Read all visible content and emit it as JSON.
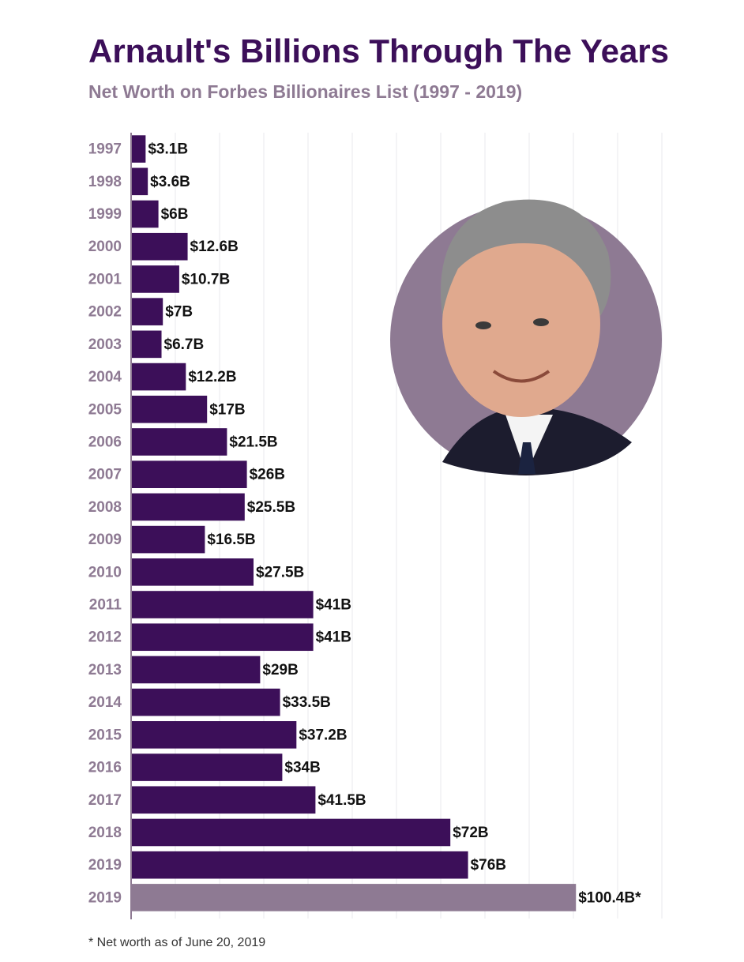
{
  "chart_data": {
    "type": "bar",
    "orientation": "horizontal",
    "title": "Arnault's Billions Through The Years",
    "subtitle": "Net Worth on Forbes Billionaires List (1997 - 2019)",
    "categories": [
      "1997",
      "1998",
      "1999",
      "2000",
      "2001",
      "2002",
      "2003",
      "2004",
      "2005",
      "2006",
      "2007",
      "2008",
      "2009",
      "2010",
      "2011",
      "2012",
      "2013",
      "2014",
      "2015",
      "2016",
      "2017",
      "2018",
      "2019",
      "2019"
    ],
    "values": [
      3.1,
      3.6,
      6,
      12.6,
      10.7,
      7,
      6.7,
      12.2,
      17,
      21.5,
      26,
      25.5,
      16.5,
      27.5,
      41,
      41,
      29,
      33.5,
      37.2,
      34,
      41.5,
      72,
      76,
      100.4
    ],
    "value_labels": [
      "$3.1B",
      "$3.6B",
      "$6B",
      "$12.6B",
      "$10.7B",
      "$7B",
      "$6.7B",
      "$12.2B",
      "$17B",
      "$21.5B",
      "$26B",
      "$25.5B",
      "$16.5B",
      "$27.5B",
      "$41B",
      "$41B",
      "$29B",
      "$33.5B",
      "$37.2B",
      "$34B",
      "$41.5B",
      "$72B",
      "$76B",
      "$100.4B*"
    ],
    "colors": [
      "#3c0f59",
      "#3c0f59",
      "#3c0f59",
      "#3c0f59",
      "#3c0f59",
      "#3c0f59",
      "#3c0f59",
      "#3c0f59",
      "#3c0f59",
      "#3c0f59",
      "#3c0f59",
      "#3c0f59",
      "#3c0f59",
      "#3c0f59",
      "#3c0f59",
      "#3c0f59",
      "#3c0f59",
      "#3c0f59",
      "#3c0f59",
      "#3c0f59",
      "#3c0f59",
      "#3c0f59",
      "#3c0f59",
      "#8e7a93"
    ],
    "xlim": [
      0,
      120
    ],
    "xticks": [
      0,
      10,
      20,
      30,
      40,
      50,
      60,
      70,
      80,
      90,
      100,
      110,
      120
    ],
    "grid": true,
    "footnote": "* Net worth as of June 20, 2019"
  }
}
